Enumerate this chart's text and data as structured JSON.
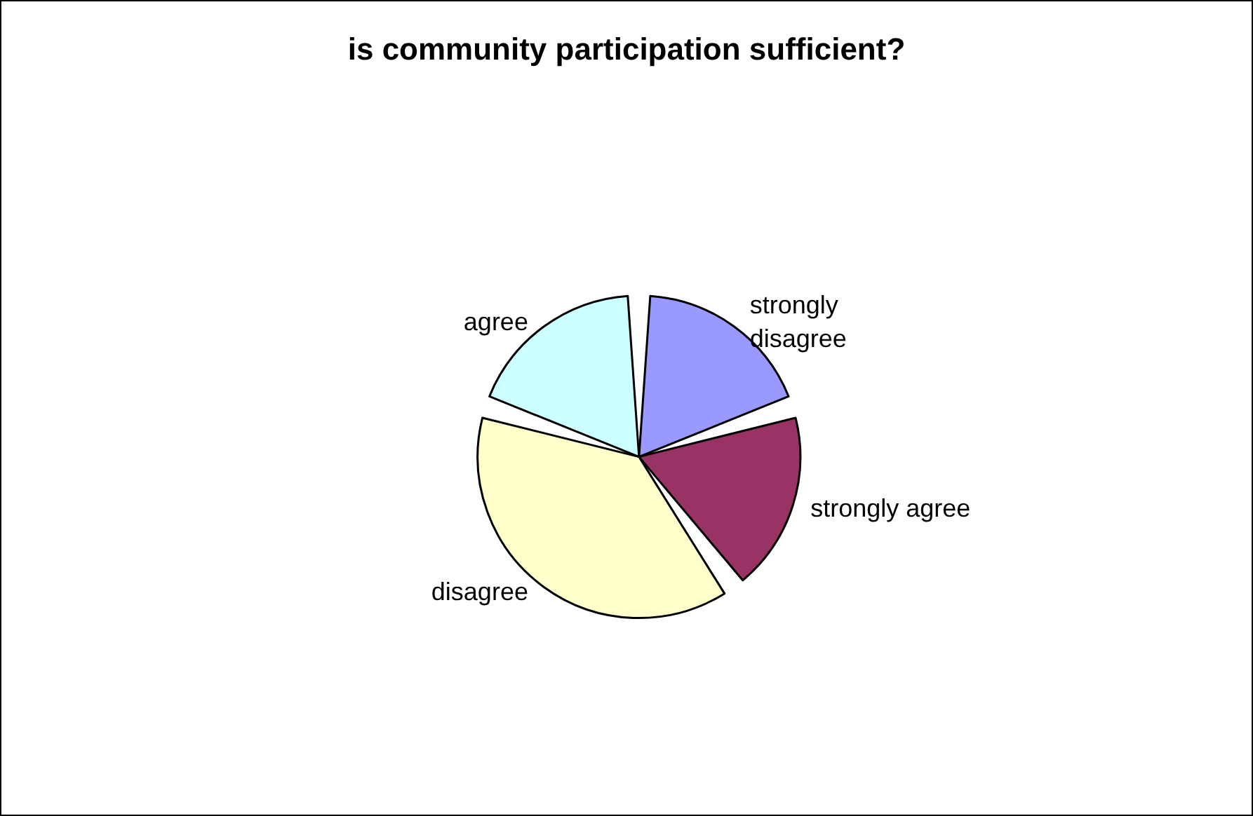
{
  "chart_data": {
    "type": "pie",
    "title": "is community participation sufficient?",
    "categories": [
      "strongly disagree",
      "strongly agree",
      "disagree",
      "agree"
    ],
    "values": [
      20,
      20,
      40,
      20
    ],
    "colors": [
      "#9999ff",
      "#993366",
      "#ffffcc",
      "#ccffff"
    ],
    "legend": false
  }
}
